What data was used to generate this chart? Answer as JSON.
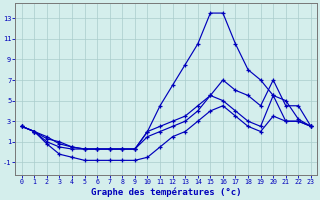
{
  "background_color": "#d4eeec",
  "grid_color": "#aacccc",
  "line_color": "#0000bb",
  "xlabel": "Graphe des températures (°c)",
  "x_ticks": [
    0,
    1,
    2,
    3,
    4,
    5,
    6,
    7,
    8,
    9,
    10,
    11,
    12,
    13,
    14,
    15,
    16,
    17,
    18,
    19,
    20,
    21,
    22,
    23
  ],
  "y_ticks": [
    -1,
    1,
    3,
    5,
    7,
    9,
    11,
    13
  ],
  "ylim": [
    -2.2,
    14.5
  ],
  "xlim": [
    -0.5,
    23.5
  ],
  "series": [
    {
      "x": [
        0,
        1,
        2,
        3,
        4,
        5,
        6,
        7,
        8,
        9,
        10,
        11,
        12,
        13,
        14,
        15,
        16,
        17,
        18,
        19,
        20,
        21,
        22,
        23
      ],
      "y": [
        2.5,
        2.0,
        1.5,
        0.8,
        0.5,
        0.3,
        0.3,
        0.3,
        0.3,
        0.3,
        2.0,
        4.5,
        6.5,
        8.5,
        10.5,
        13.5,
        13.5,
        10.5,
        8.0,
        7.0,
        5.5,
        5.0,
        3.2,
        2.5
      ]
    },
    {
      "x": [
        0,
        1,
        2,
        3,
        4,
        5,
        6,
        7,
        8,
        9,
        10,
        11,
        12,
        13,
        14,
        15,
        16,
        17,
        18,
        19,
        20,
        21,
        22,
        23
      ],
      "y": [
        2.5,
        2.0,
        1.3,
        1.0,
        0.5,
        0.3,
        0.3,
        0.3,
        0.3,
        0.3,
        2.0,
        2.5,
        3.0,
        3.5,
        4.5,
        5.5,
        7.0,
        6.0,
        5.5,
        4.5,
        7.0,
        4.5,
        4.5,
        2.5
      ]
    },
    {
      "x": [
        0,
        1,
        2,
        3,
        4,
        5,
        6,
        7,
        8,
        9,
        10,
        11,
        12,
        13,
        14,
        15,
        16,
        17,
        18,
        19,
        20,
        21,
        22,
        23
      ],
      "y": [
        2.5,
        2.0,
        1.0,
        0.5,
        0.3,
        0.3,
        0.3,
        0.3,
        0.3,
        0.3,
        1.5,
        2.0,
        2.5,
        3.0,
        4.0,
        5.5,
        5.0,
        4.0,
        3.0,
        2.5,
        5.5,
        3.0,
        3.0,
        2.5
      ]
    },
    {
      "x": [
        0,
        1,
        2,
        3,
        4,
        5,
        6,
        7,
        8,
        9,
        10,
        11,
        12,
        13,
        14,
        15,
        16,
        17,
        18,
        19,
        20,
        21,
        22,
        23
      ],
      "y": [
        2.5,
        2.0,
        0.8,
        -0.2,
        -0.5,
        -0.8,
        -0.8,
        -0.8,
        -0.8,
        -0.8,
        -0.5,
        0.5,
        1.5,
        2.0,
        3.0,
        4.0,
        4.5,
        3.5,
        2.5,
        2.0,
        3.5,
        3.0,
        3.0,
        2.5
      ]
    }
  ]
}
